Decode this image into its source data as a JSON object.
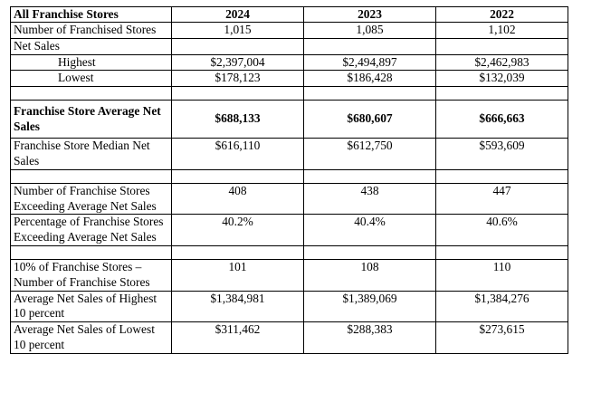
{
  "table": {
    "header": {
      "label": "All Franchise Stores",
      "years": [
        "2024",
        "2023",
        "2022"
      ]
    },
    "franchised_count": {
      "label": "Number of Franchised Stores",
      "values": [
        "1,015",
        "1,085",
        "1,102"
      ]
    },
    "net_sales_label": "Net Sales",
    "highest": {
      "label": "Highest",
      "values": [
        "$2,397,004",
        "$2,494,897",
        "$2,462,983"
      ]
    },
    "lowest": {
      "label": "Lowest",
      "values": [
        "$178,123",
        "$186,428",
        "$132,039"
      ]
    },
    "average": {
      "label": "Franchise Store Average Net Sales",
      "values": [
        "$688,133",
        "$680,607",
        "$666,663"
      ]
    },
    "median": {
      "label": "Franchise Store Median Net Sales",
      "values": [
        "$616,110",
        "$612,750",
        "$593,609"
      ]
    },
    "exceeding_count": {
      "label": "Number of Franchise Stores Exceeding Average Net Sales",
      "values": [
        "408",
        "438",
        "447"
      ]
    },
    "exceeding_pct": {
      "label": "Percentage of Franchise Stores Exceeding Average Net Sales",
      "values": [
        "40.2%",
        "40.4%",
        "40.6%"
      ]
    },
    "top10_count": {
      "label": "10% of Franchise Stores – Number of Franchise Stores",
      "values": [
        "101",
        "108",
        "110"
      ]
    },
    "top10_avg": {
      "label": "Average Net Sales of Highest 10 percent",
      "values": [
        "$1,384,981",
        "$1,389,069",
        "$1,384,276"
      ]
    },
    "bottom10_avg": {
      "label": "Average Net Sales of Lowest 10 percent",
      "values": [
        "$311,462",
        "$288,383",
        "$273,615"
      ]
    }
  }
}
